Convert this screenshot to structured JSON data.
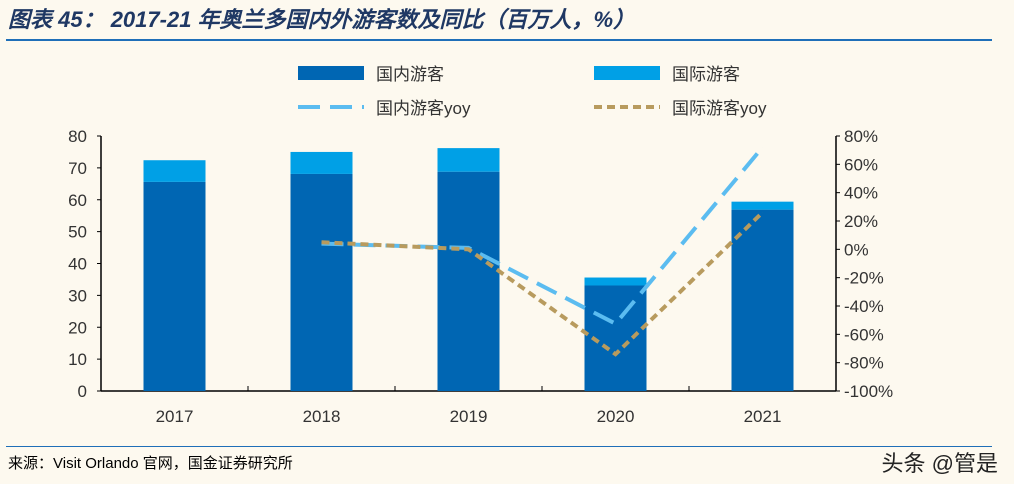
{
  "title": "图表 45： 2017-21 年奥兰多国内外游客数及同比（百万人，%）",
  "source": "来源：Visit Orlando 官网，国金证券研究所",
  "watermark": "头条 @管是",
  "chart_data": {
    "type": "bar+line",
    "categories": [
      "2017",
      "2018",
      "2019",
      "2020",
      "2021"
    ],
    "series": [
      {
        "name": "国内游客",
        "type": "stacked-bar",
        "axis": "left",
        "color": "#0066b3",
        "values": [
          65.6,
          68.1,
          68.8,
          33.1,
          56.9
        ]
      },
      {
        "name": "国际游客",
        "type": "stacked-bar",
        "axis": "left",
        "color": "#00a0e6",
        "values": [
          6.8,
          6.9,
          7.4,
          2.5,
          2.5
        ]
      },
      {
        "name": "国内游客yoy",
        "type": "line",
        "style": "dashed",
        "axis": "right",
        "color": "#5bbcf0",
        "values": [
          null,
          4,
          1,
          -52.5,
          72
        ]
      },
      {
        "name": "国际游客yoy",
        "type": "line",
        "style": "dotted",
        "axis": "right",
        "color": "#b89b5e",
        "values": [
          null,
          5,
          0,
          -74,
          26
        ]
      }
    ],
    "left_axis": {
      "ylim": [
        0,
        80
      ],
      "ticks": [
        "0",
        "10",
        "20",
        "30",
        "40",
        "50",
        "60",
        "70",
        "80"
      ]
    },
    "right_axis": {
      "ylim": [
        -100,
        80
      ],
      "ticks": [
        "-100%",
        "-80%",
        "-60%",
        "-40%",
        "-20%",
        "0%",
        "20%",
        "40%",
        "60%",
        "80%"
      ]
    },
    "legend": "top",
    "grid": false
  }
}
